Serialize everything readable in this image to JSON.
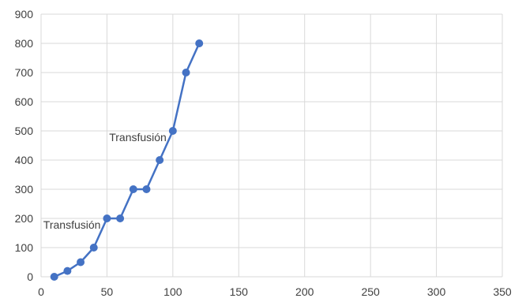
{
  "chart_data": {
    "type": "scatter",
    "title": "",
    "xlabel": "",
    "ylabel": "",
    "xlim": [
      0,
      350
    ],
    "ylim": [
      0,
      900
    ],
    "x_ticks": [
      0,
      50,
      100,
      150,
      200,
      250,
      300,
      350
    ],
    "y_ticks": [
      0,
      100,
      200,
      300,
      400,
      500,
      600,
      700,
      800,
      900
    ],
    "grid": true,
    "legend": "none",
    "series": [
      {
        "color": "#4472c4",
        "marker": "circle",
        "line": true,
        "points": [
          {
            "x": 10,
            "y": 0
          },
          {
            "x": 20,
            "y": 20
          },
          {
            "x": 30,
            "y": 50
          },
          {
            "x": 40,
            "y": 100
          },
          {
            "x": 50,
            "y": 200
          },
          {
            "x": 60,
            "y": 200
          },
          {
            "x": 70,
            "y": 300
          },
          {
            "x": 80,
            "y": 300
          },
          {
            "x": 90,
            "y": 400
          },
          {
            "x": 100,
            "y": 500
          },
          {
            "x": 110,
            "y": 700
          },
          {
            "x": 120,
            "y": 800
          }
        ]
      }
    ],
    "annotations": [
      {
        "text": "Transfusión",
        "x": 50,
        "y": 200
      },
      {
        "text": "Transfusión",
        "x": 100,
        "y": 500
      }
    ]
  },
  "colors": {
    "gridline": "#d9d9d9",
    "axis_text": "#404040"
  }
}
